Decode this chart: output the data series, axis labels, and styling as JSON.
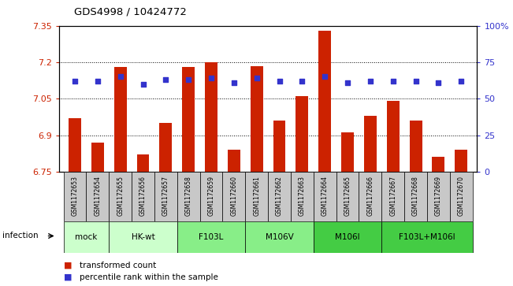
{
  "title": "GDS4998 / 10424772",
  "samples": [
    "GSM1172653",
    "GSM1172654",
    "GSM1172655",
    "GSM1172656",
    "GSM1172657",
    "GSM1172658",
    "GSM1172659",
    "GSM1172660",
    "GSM1172661",
    "GSM1172662",
    "GSM1172663",
    "GSM1172664",
    "GSM1172665",
    "GSM1172666",
    "GSM1172667",
    "GSM1172668",
    "GSM1172669",
    "GSM1172670"
  ],
  "bar_values": [
    6.97,
    6.87,
    7.18,
    6.82,
    6.95,
    7.18,
    7.2,
    6.84,
    7.185,
    6.96,
    7.06,
    7.33,
    6.91,
    6.98,
    7.04,
    6.96,
    6.81,
    6.84
  ],
  "percentile_values": [
    62,
    62,
    65,
    60,
    63,
    63,
    64,
    61,
    64,
    62,
    62,
    65,
    61,
    62,
    62,
    62,
    61,
    62
  ],
  "ylim_left": [
    6.75,
    7.35
  ],
  "ylim_right": [
    0,
    100
  ],
  "yticks_left": [
    6.75,
    6.9,
    7.05,
    7.2,
    7.35
  ],
  "ytick_labels_left": [
    "6.75",
    "6.9",
    "7.05",
    "7.2",
    "7.35"
  ],
  "yticks_right": [
    0,
    25,
    50,
    75,
    100
  ],
  "ytick_labels_right": [
    "0",
    "25",
    "50",
    "75",
    "100%"
  ],
  "hlines": [
    6.9,
    7.05,
    7.2
  ],
  "bar_color": "#cc2200",
  "dot_color": "#3333cc",
  "group_data": [
    {
      "label": "mock",
      "start": 0,
      "end": 2,
      "color": "#ccffcc"
    },
    {
      "label": "HK-wt",
      "start": 2,
      "end": 5,
      "color": "#ccffcc"
    },
    {
      "label": "F103L",
      "start": 5,
      "end": 8,
      "color": "#88ee88"
    },
    {
      "label": "M106V",
      "start": 8,
      "end": 11,
      "color": "#88ee88"
    },
    {
      "label": "M106I",
      "start": 11,
      "end": 14,
      "color": "#44cc44"
    },
    {
      "label": "F103L+M106I",
      "start": 14,
      "end": 18,
      "color": "#44cc44"
    }
  ],
  "sample_box_color": "#c8c8c8",
  "infection_label": "infection",
  "legend_bar_label": "transformed count",
  "legend_dot_label": "percentile rank within the sample",
  "tick_color_left": "#cc2200",
  "tick_color_right": "#3333cc"
}
